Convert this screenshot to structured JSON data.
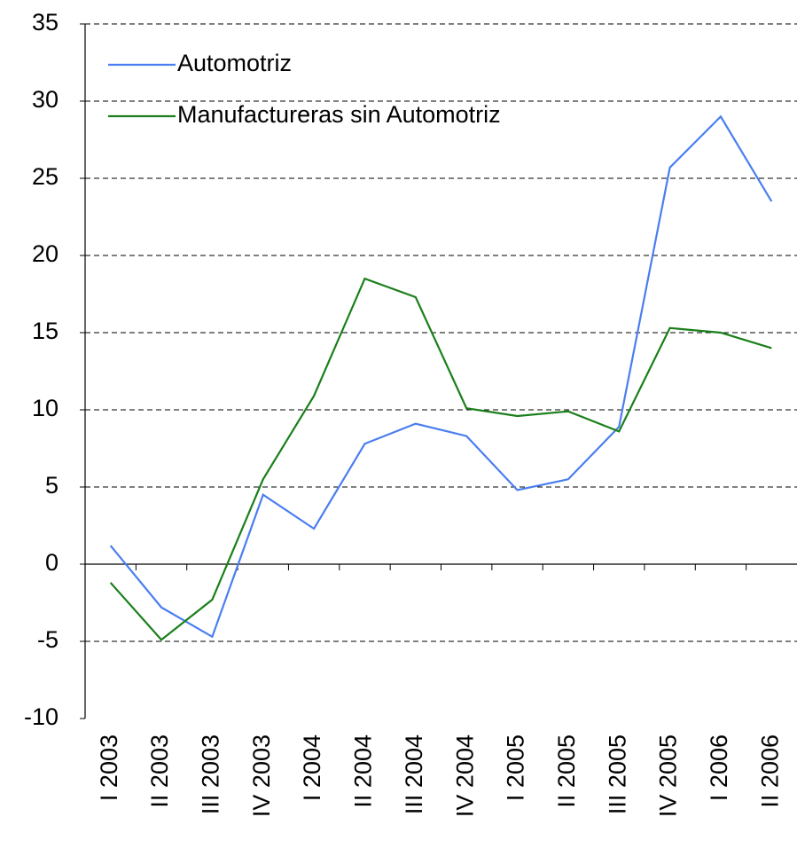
{
  "chart_data": {
    "type": "line",
    "categories": [
      "I 2003",
      "II 2003",
      "III 2003",
      "IV 2003",
      "I 2004",
      "II 2004",
      "III 2004",
      "IV 2004",
      "I 2005",
      "II 2005",
      "III 2005",
      "IV 2005",
      "I 2006",
      "II 2006"
    ],
    "series": [
      {
        "name": "Automotriz",
        "color": "#4a7ef0",
        "values": [
          1.2,
          -2.8,
          -4.7,
          4.5,
          2.3,
          7.8,
          9.1,
          8.3,
          4.8,
          5.5,
          8.9,
          25.7,
          29.0,
          23.5
        ]
      },
      {
        "name": "Manufactureras sin Automotriz",
        "color": "#1a7f1a",
        "values": [
          -1.2,
          -4.9,
          -2.3,
          5.5,
          10.9,
          18.5,
          17.3,
          10.1,
          9.6,
          9.9,
          8.6,
          15.3,
          15.0,
          14.0
        ]
      }
    ],
    "ylim": [
      -10,
      35
    ],
    "yticks": [
      -10,
      -5,
      0,
      5,
      10,
      15,
      20,
      25,
      30,
      35
    ],
    "grid": true,
    "legend": "upper left"
  }
}
